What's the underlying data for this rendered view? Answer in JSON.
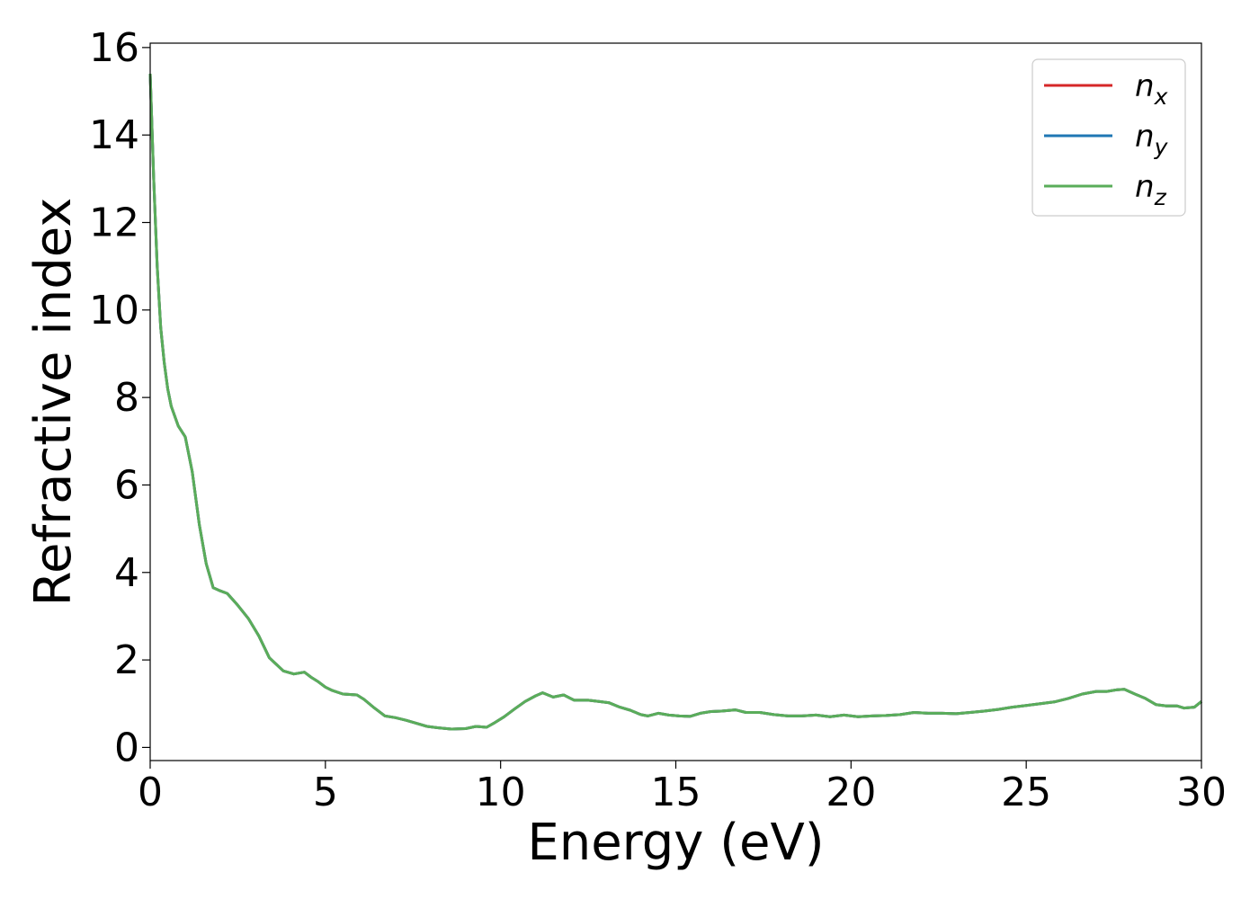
{
  "chart_data": {
    "type": "line",
    "title": "",
    "xlabel": "Energy (eV)",
    "ylabel": "Refractive index",
    "xlim": [
      0,
      30
    ],
    "ylim": [
      -0.3,
      16.1
    ],
    "xticks": [
      0,
      5,
      10,
      15,
      20,
      25,
      30
    ],
    "yticks": [
      0,
      2,
      4,
      6,
      8,
      10,
      12,
      14,
      16
    ],
    "grid": false,
    "legend_position": "top-right",
    "x": [
      0.0,
      0.1,
      0.2,
      0.3,
      0.4,
      0.5,
      0.6,
      0.8,
      1.0,
      1.2,
      1.4,
      1.6,
      1.8,
      2.0,
      2.2,
      2.5,
      2.8,
      3.1,
      3.4,
      3.6,
      3.8,
      4.1,
      4.4,
      4.6,
      4.8,
      5.0,
      5.2,
      5.5,
      5.9,
      6.1,
      6.4,
      6.7,
      7.0,
      7.3,
      7.6,
      7.9,
      8.2,
      8.6,
      9.0,
      9.3,
      9.6,
      9.8,
      10.1,
      10.4,
      10.7,
      11.0,
      11.2,
      11.5,
      11.8,
      12.1,
      12.5,
      12.8,
      13.1,
      13.4,
      13.7,
      14.0,
      14.2,
      14.5,
      14.8,
      15.1,
      15.4,
      15.7,
      16.0,
      16.3,
      16.7,
      17.0,
      17.4,
      17.8,
      18.2,
      18.6,
      19.0,
      19.4,
      19.8,
      20.2,
      20.6,
      21.0,
      21.4,
      21.8,
      22.2,
      22.6,
      23.0,
      23.4,
      23.8,
      24.2,
      24.6,
      25.0,
      25.4,
      25.8,
      26.2,
      26.6,
      27.0,
      27.3,
      27.6,
      27.8,
      28.1,
      28.4,
      28.7,
      29.0,
      29.3,
      29.5,
      29.8,
      30.0
    ],
    "series": [
      {
        "name": "n_x",
        "color": "#d62728",
        "values": [
          15.4,
          13.0,
          11.0,
          9.6,
          8.8,
          8.2,
          7.8,
          7.35,
          7.1,
          6.3,
          5.1,
          4.2,
          3.65,
          3.58,
          3.52,
          3.25,
          2.95,
          2.55,
          2.05,
          1.9,
          1.75,
          1.68,
          1.72,
          1.6,
          1.5,
          1.38,
          1.3,
          1.22,
          1.2,
          1.1,
          0.9,
          0.72,
          0.68,
          0.62,
          0.55,
          0.48,
          0.45,
          0.42,
          0.43,
          0.48,
          0.46,
          0.55,
          0.7,
          0.88,
          1.05,
          1.18,
          1.25,
          1.15,
          1.2,
          1.08,
          1.08,
          1.05,
          1.02,
          0.92,
          0.85,
          0.75,
          0.72,
          0.78,
          0.74,
          0.72,
          0.71,
          0.78,
          0.82,
          0.83,
          0.86,
          0.8,
          0.8,
          0.75,
          0.72,
          0.72,
          0.74,
          0.7,
          0.74,
          0.7,
          0.72,
          0.73,
          0.75,
          0.8,
          0.78,
          0.78,
          0.77,
          0.8,
          0.83,
          0.87,
          0.92,
          0.96,
          1.0,
          1.04,
          1.12,
          1.22,
          1.28,
          1.28,
          1.32,
          1.33,
          1.22,
          1.12,
          0.98,
          0.95,
          0.95,
          0.9,
          0.92,
          1.05
        ]
      },
      {
        "name": "n_y",
        "color": "#1f77b4",
        "values": [
          15.4,
          13.0,
          11.0,
          9.6,
          8.8,
          8.2,
          7.8,
          7.35,
          7.1,
          6.3,
          5.1,
          4.2,
          3.65,
          3.58,
          3.52,
          3.25,
          2.95,
          2.55,
          2.05,
          1.9,
          1.75,
          1.68,
          1.72,
          1.6,
          1.5,
          1.38,
          1.3,
          1.22,
          1.2,
          1.1,
          0.9,
          0.72,
          0.68,
          0.62,
          0.55,
          0.48,
          0.45,
          0.42,
          0.43,
          0.48,
          0.46,
          0.55,
          0.7,
          0.88,
          1.05,
          1.18,
          1.25,
          1.15,
          1.2,
          1.08,
          1.08,
          1.05,
          1.02,
          0.92,
          0.85,
          0.75,
          0.72,
          0.78,
          0.74,
          0.72,
          0.71,
          0.78,
          0.82,
          0.83,
          0.86,
          0.8,
          0.8,
          0.75,
          0.72,
          0.72,
          0.74,
          0.7,
          0.74,
          0.7,
          0.72,
          0.73,
          0.75,
          0.8,
          0.78,
          0.78,
          0.77,
          0.8,
          0.83,
          0.87,
          0.92,
          0.96,
          1.0,
          1.04,
          1.12,
          1.22,
          1.28,
          1.28,
          1.32,
          1.33,
          1.22,
          1.12,
          0.98,
          0.95,
          0.95,
          0.9,
          0.92,
          1.05
        ]
      },
      {
        "name": "n_z",
        "color": "#5aad5a",
        "values": [
          15.4,
          13.0,
          11.0,
          9.6,
          8.8,
          8.2,
          7.8,
          7.35,
          7.1,
          6.3,
          5.1,
          4.2,
          3.65,
          3.58,
          3.52,
          3.25,
          2.95,
          2.55,
          2.05,
          1.9,
          1.75,
          1.68,
          1.72,
          1.6,
          1.5,
          1.38,
          1.3,
          1.22,
          1.2,
          1.1,
          0.9,
          0.72,
          0.68,
          0.62,
          0.55,
          0.48,
          0.45,
          0.42,
          0.43,
          0.48,
          0.46,
          0.55,
          0.7,
          0.88,
          1.05,
          1.18,
          1.25,
          1.15,
          1.2,
          1.08,
          1.08,
          1.05,
          1.02,
          0.92,
          0.85,
          0.75,
          0.72,
          0.78,
          0.74,
          0.72,
          0.71,
          0.78,
          0.82,
          0.83,
          0.86,
          0.8,
          0.8,
          0.75,
          0.72,
          0.72,
          0.74,
          0.7,
          0.74,
          0.7,
          0.72,
          0.73,
          0.75,
          0.8,
          0.78,
          0.78,
          0.77,
          0.8,
          0.83,
          0.87,
          0.92,
          0.96,
          1.0,
          1.04,
          1.12,
          1.22,
          1.28,
          1.28,
          1.32,
          1.33,
          1.22,
          1.12,
          0.98,
          0.95,
          0.95,
          0.9,
          0.92,
          1.05
        ]
      }
    ],
    "legend": [
      {
        "base": "n",
        "sub": "x"
      },
      {
        "base": "n",
        "sub": "y"
      },
      {
        "base": "n",
        "sub": "z"
      }
    ]
  }
}
